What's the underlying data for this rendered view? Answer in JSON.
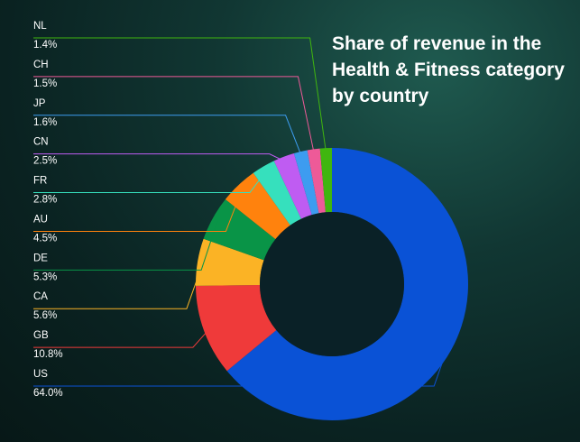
{
  "chart_data": {
    "type": "pie",
    "title": "Share of revenue in the Health & Fitness category by country",
    "donut": true,
    "legend_placement": "left",
    "categories": [
      "US",
      "GB",
      "CA",
      "DE",
      "AU",
      "FR",
      "CN",
      "JP",
      "CH",
      "NL"
    ],
    "values": [
      64.0,
      10.8,
      5.6,
      5.3,
      4.5,
      2.8,
      2.5,
      1.6,
      1.5,
      1.4
    ],
    "value_labels": [
      "64.0%",
      "10.8%",
      "5.6%",
      "5.3%",
      "4.5%",
      "2.8%",
      "2.5%",
      "1.6%",
      "1.5%",
      "1.4%"
    ],
    "colors": [
      "#0a52d6",
      "#ef3a3a",
      "#fbb325",
      "#099447",
      "#ff820d",
      "#36e0bd",
      "#bf5cf2",
      "#3d9cf0",
      "#ee5a98",
      "#40b60f"
    ]
  }
}
